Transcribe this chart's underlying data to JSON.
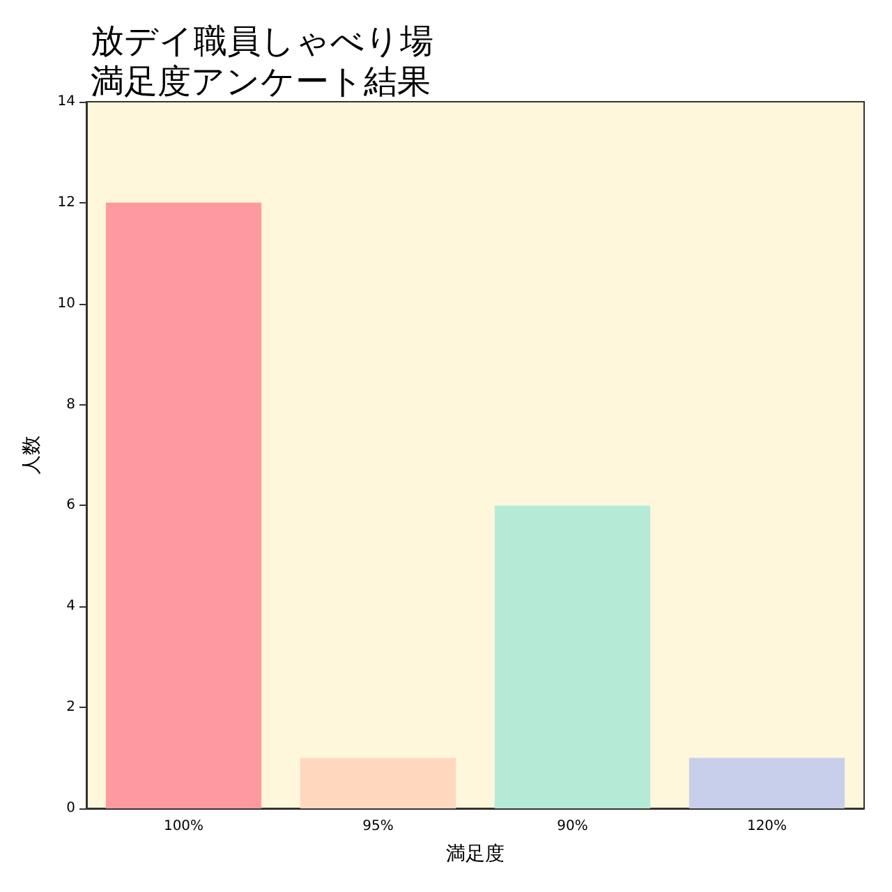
{
  "chart_data": {
    "type": "bar",
    "title": "放デイ職員しゃべり場満足度アンケート結果",
    "xlabel": "満足度",
    "ylabel": "人数",
    "categories": [
      "100%",
      "95%",
      "90%",
      "120%"
    ],
    "values": [
      12,
      1,
      6,
      1
    ],
    "colors": [
      "#ff99a0",
      "#ffd8bf",
      "#b5ead7",
      "#c7cfea"
    ],
    "ylim": [
      0,
      14
    ],
    "yticks": [
      0,
      2,
      4,
      6,
      8,
      10,
      12,
      14
    ],
    "grid": false
  }
}
